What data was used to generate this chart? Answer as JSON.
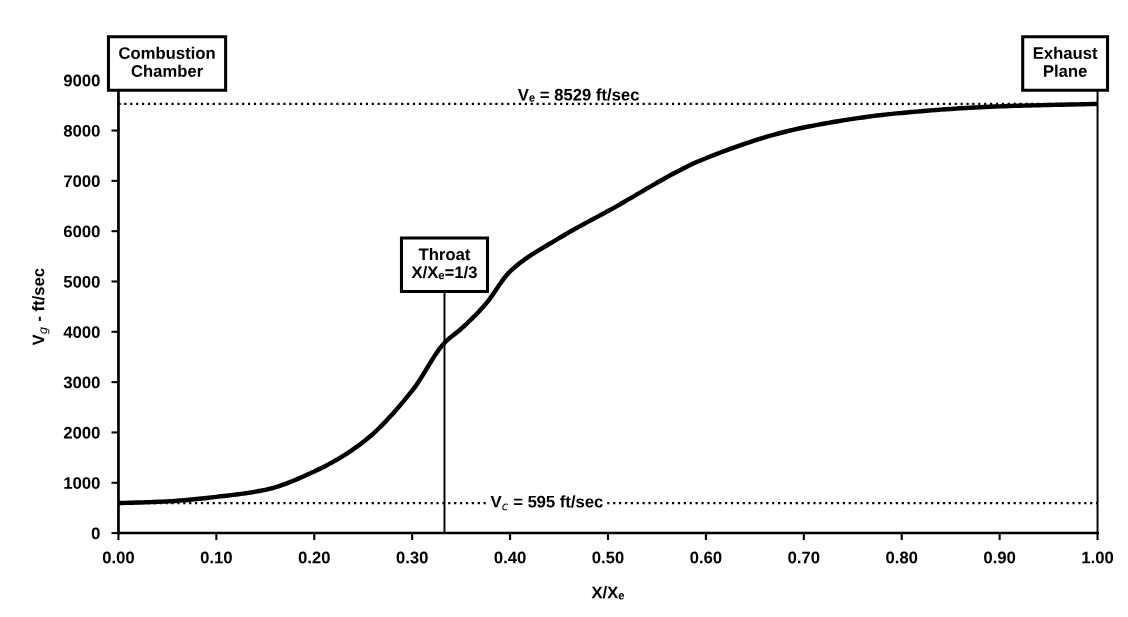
{
  "chart_data": {
    "type": "line",
    "xlabel": "X/Xₑ",
    "ylabel": "V$_{g}$ - ft/sec",
    "x": [
      0,
      0.05,
      0.1,
      0.15,
      0.2,
      0.25,
      0.3,
      0.333,
      0.35,
      0.375,
      0.4,
      0.45,
      0.5,
      0.6,
      0.7,
      0.8,
      0.9,
      1.0
    ],
    "series": [
      {
        "color": "#000000",
        "values": [
          595,
          630,
          720,
          860,
          1225,
          1810,
          2830,
          3780,
          4060,
          4550,
          5200,
          5860,
          6400,
          7450,
          8060,
          8350,
          8480,
          8529
        ]
      }
    ],
    "xlim": [
      0,
      1
    ],
    "ylim": [
      0,
      9000
    ],
    "xticks": [
      {
        "value": 0,
        "label": "0.00"
      },
      {
        "value": 0.1,
        "label": "0.10"
      },
      {
        "value": 0.2,
        "label": "0.20"
      },
      {
        "value": 0.3,
        "label": "0.30"
      },
      {
        "value": 0.4,
        "label": "0.40"
      },
      {
        "value": 0.5,
        "label": "0.50"
      },
      {
        "value": 0.6,
        "label": "0.60"
      },
      {
        "value": 0.7,
        "label": "0.70"
      },
      {
        "value": 0.8,
        "label": "0.80"
      },
      {
        "value": 0.9,
        "label": "0.90"
      },
      {
        "value": 1,
        "label": "1.00"
      }
    ],
    "yticks": [
      0,
      1000,
      2000,
      3000,
      4000,
      5000,
      6000,
      7000,
      8000,
      9000
    ],
    "grid": false,
    "legend": false,
    "marker": "none",
    "line_style": "solid",
    "ref_lines": [
      {
        "axis": "y",
        "value": 8529,
        "line_style": "dotted",
        "color": "#000000"
      },
      {
        "axis": "y",
        "value": 595,
        "line_style": "dotted",
        "color": "#000000"
      },
      {
        "axis": "x",
        "value": 0,
        "line_style": "solid",
        "color": "#000000"
      },
      {
        "axis": "x",
        "value": 0.333,
        "line_style": "solid",
        "color": "#000000"
      },
      {
        "axis": "x",
        "value": 1,
        "line_style": "solid",
        "color": "#000000"
      }
    ],
    "annotations": [
      {
        "text": "Combustion\nChamber",
        "x": 0,
        "y": 9000
      },
      {
        "text": "Exhaust\nPlane",
        "x": 1,
        "y": 9000
      },
      {
        "text": "Throat\nX/Xₑ=1/3",
        "x": 0.333,
        "y": 5000
      },
      {
        "text": "Vₑ = 8529 ft/sec",
        "x": 0.47,
        "y": 8529
      },
      {
        "text": "V$_{c}$ = 595 ft/sec",
        "x": 0.38,
        "y": 595
      }
    ]
  }
}
